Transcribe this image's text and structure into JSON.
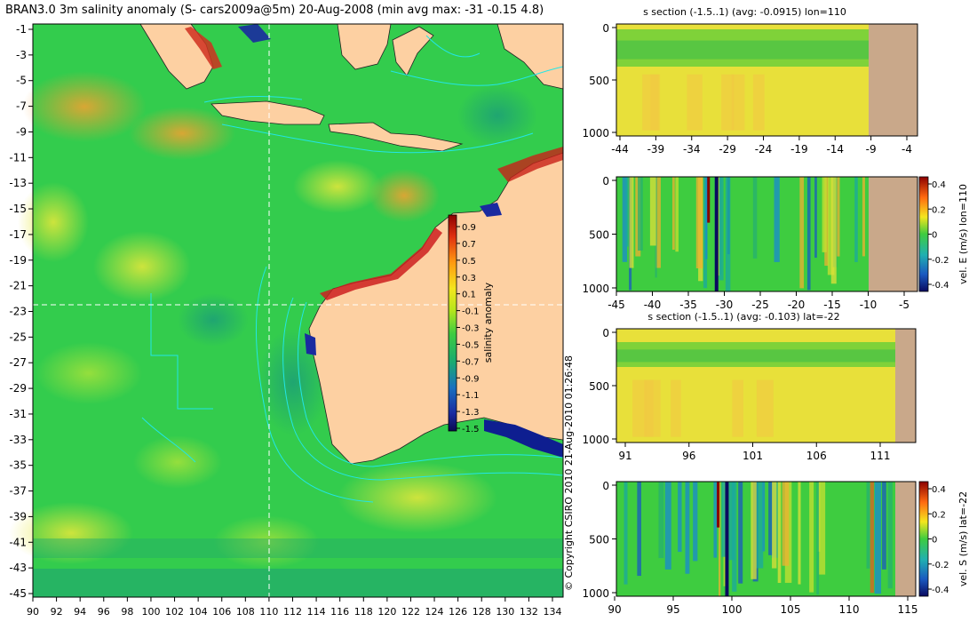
{
  "map": {
    "title": "BRAN3.0 3m salinity anomaly (S- cars2009a@5m) 20-Aug-2008 (min avg max: -31 -0.15 4.8)",
    "y_ticks": [
      "-1",
      "-3",
      "-5",
      "-7",
      "-9",
      "-11",
      "-13",
      "-15",
      "-17",
      "-19",
      "-21",
      "-23",
      "-25",
      "-27",
      "-29",
      "-31",
      "-33",
      "-35",
      "-37",
      "-39",
      "-41",
      "-43",
      "-45"
    ],
    "x_ticks": [
      "90",
      "92",
      "94",
      "96",
      "98",
      "100",
      "102",
      "104",
      "106",
      "108",
      "110",
      "112",
      "114",
      "116",
      "118",
      "120",
      "122",
      "124",
      "126",
      "128",
      "130",
      "132",
      "134"
    ],
    "colorbar": {
      "label": "salinity anomaly",
      "ticks": [
        "0.9",
        "0.7",
        "0.5",
        "0.3",
        "0.1",
        "-0.1",
        "-0.3",
        "-0.5",
        "-0.7",
        "-0.9",
        "-1.1",
        "-1.3",
        "-1.5"
      ]
    },
    "credit": "© Copyright CSIRO 2010  21-Aug-2010 01:26:48",
    "colors": {
      "ocean": "#33cc4d",
      "land": "#fdd0a2",
      "contour": "#22e6e6",
      "guide": "#ffffff"
    }
  },
  "panels": [
    {
      "title": "s section (-1.5..1) (avg: -0.0915) lon=110",
      "y_ticks": [
        "0",
        "500",
        "1000"
      ],
      "x_ticks": [
        "-44",
        "-39",
        "-34",
        "-29",
        "-24",
        "-19",
        "-14",
        "-9",
        "-4"
      ],
      "side_label": "",
      "colorbar_ticks": []
    },
    {
      "title": "",
      "y_ticks": [
        "0",
        "500",
        "1000"
      ],
      "x_ticks": [
        "-45",
        "-40",
        "-35",
        "-30",
        "-25",
        "-20",
        "-15",
        "-10",
        "-5"
      ],
      "side_label": "vel. E (m/s) lon=110",
      "colorbar_ticks": [
        "0.4",
        "0.2",
        "0",
        "-0.2",
        "-0.4"
      ]
    },
    {
      "title": "s section (-1.5..1) (avg: -0.103) lat=-22",
      "y_ticks": [
        "0",
        "500",
        "1000"
      ],
      "x_ticks": [
        "91",
        "96",
        "101",
        "106",
        "111"
      ],
      "side_label": "",
      "colorbar_ticks": []
    },
    {
      "title": "",
      "y_ticks": [
        "0",
        "500",
        "1000"
      ],
      "x_ticks": [
        "90",
        "95",
        "100",
        "105",
        "110",
        "115"
      ],
      "side_label": "vel. S (m/s) lat=-22",
      "colorbar_ticks": [
        "0.4",
        "0.2",
        "0",
        "-0.2",
        "-0.4"
      ]
    }
  ]
}
